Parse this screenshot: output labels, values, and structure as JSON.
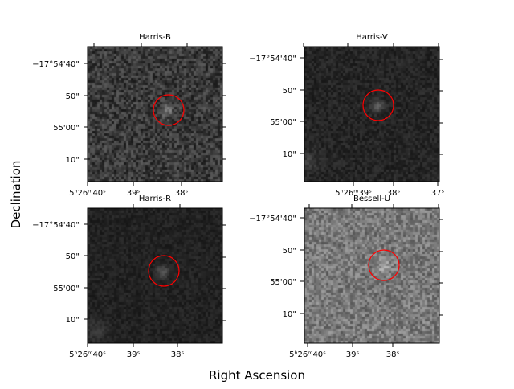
{
  "figure": {
    "xlabel": "Right Ascension",
    "ylabel": "Declination"
  },
  "chart_data": [
    {
      "type": "heatmap",
      "title": "Harris-B",
      "background": "#3a3a3a",
      "noise": 0.55,
      "xticks": [
        "5ʰ26ᵐ40ˢ",
        "39ˢ",
        "38ˢ"
      ],
      "yticks": [
        "−17°54'40\"",
        "50\"",
        "55'00\"",
        "10\""
      ],
      "marker": {
        "shape": "circle",
        "color": "#ff0000",
        "ra": "5h26m38.4s",
        "dec": "-17°54'52\""
      }
    },
    {
      "type": "heatmap",
      "title": "Harris-V",
      "background": "#252525",
      "noise": 0.25,
      "xticks": [
        "5ʰ26ᵐ39ˢ",
        "38ˢ",
        "37ˢ"
      ],
      "yticks": [
        "−17°54'40\"",
        "50\"",
        "55'00\"",
        "10\""
      ],
      "marker": {
        "shape": "circle",
        "color": "#ff0000",
        "ra": "5h26m38.4s",
        "dec": "-17°54'52\""
      }
    },
    {
      "type": "heatmap",
      "title": "Harris-R",
      "background": "#222222",
      "noise": 0.2,
      "xticks": [
        "5ʰ26ᵐ40ˢ",
        "39ˢ",
        "38ˢ"
      ],
      "yticks": [
        "−17°54'40\"",
        "50\"",
        "55'00\"",
        "10\""
      ],
      "marker": {
        "shape": "circle",
        "color": "#ff0000",
        "ra": "5h26m38.4s",
        "dec": "-17°54'52\""
      }
    },
    {
      "type": "heatmap",
      "title": "Bessell-U",
      "background": "#7a7a7a",
      "noise": 0.6,
      "xticks": [
        "5ʰ26ᵐ40ˢ",
        "39ˢ",
        "38ˢ"
      ],
      "yticks": [
        "−17°54'40\"",
        "50\"",
        "55'00\"",
        "10\""
      ],
      "marker": {
        "shape": "circle",
        "color": "#ff0000",
        "ra": "5h26m38.4s",
        "dec": "-17°54'52\""
      }
    }
  ]
}
